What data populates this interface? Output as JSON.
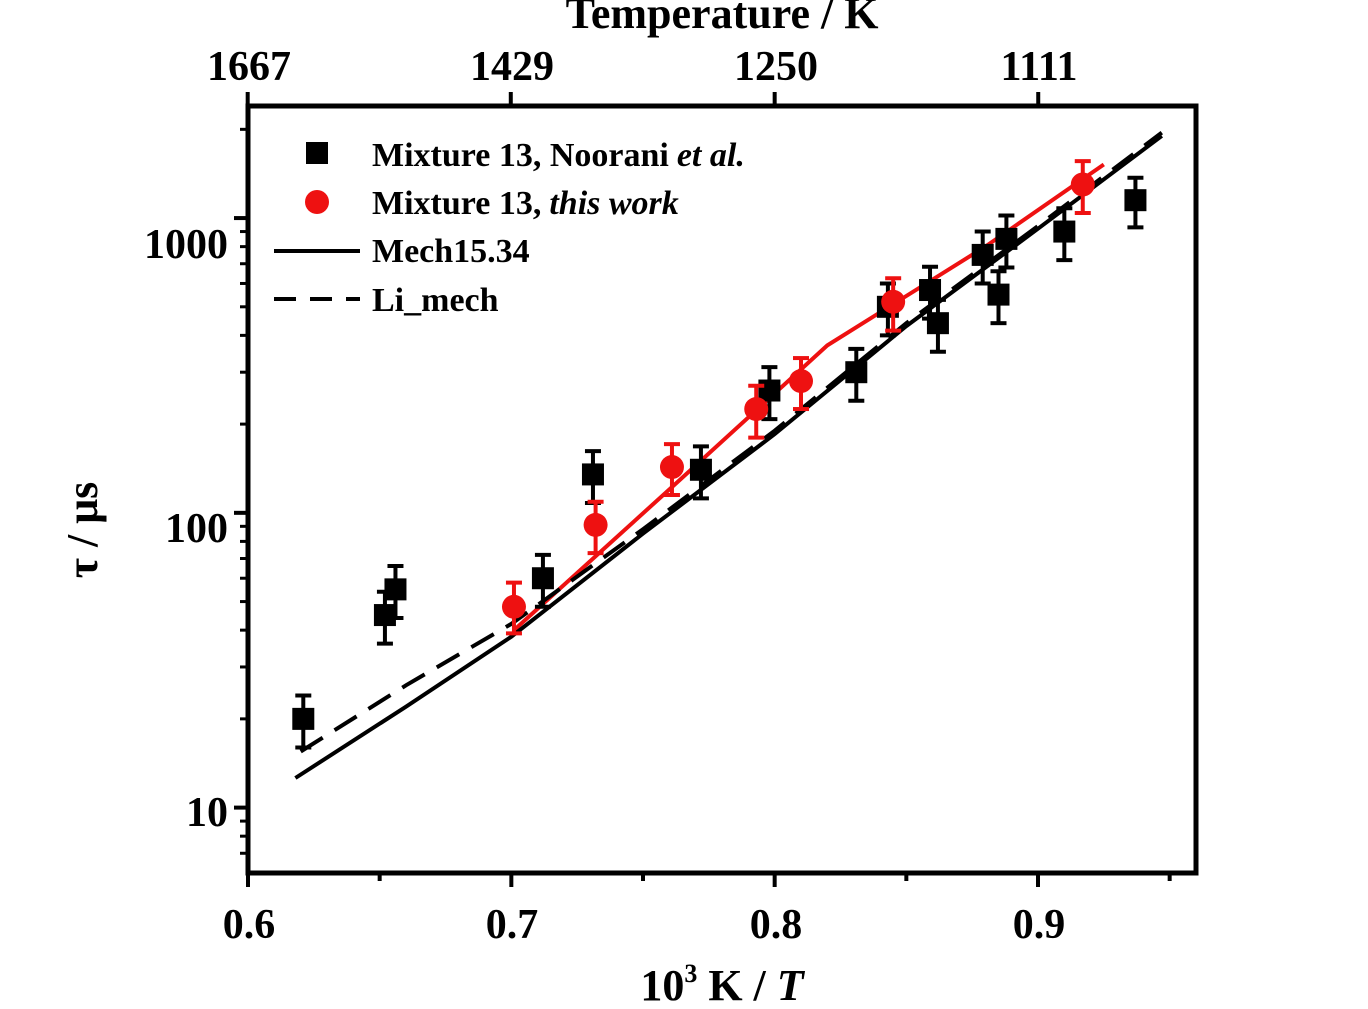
{
  "chart_data": {
    "type": "scatter",
    "top_axis": {
      "title": "Temperature / K",
      "tick_labels": [
        "1667",
        "1429",
        "1250",
        "1111"
      ]
    },
    "xlabel": {
      "prefix": "10",
      "sup": "3",
      "mid": " K / ",
      "var": "T"
    },
    "ylabel": "τ / μs",
    "y_scale": "log",
    "xlim": [
      0.6,
      0.96
    ],
    "ylim": [
      6,
      2400
    ],
    "x_ticks": [
      "0.6",
      "0.7",
      "0.8",
      "0.9"
    ],
    "y_ticks": [
      "10",
      "100",
      "1000"
    ],
    "legend_position": "top-left",
    "series": [
      {
        "name": "Mixture 13, Noorani",
        "name_italic_suffix": "et al.",
        "kind": "points",
        "marker": "square",
        "color": "#000000",
        "points": [
          {
            "x": 0.621,
            "y": 20,
            "err_lo": 4,
            "err_hi": 4
          },
          {
            "x": 0.652,
            "y": 45,
            "err_lo": 9,
            "err_hi": 9
          },
          {
            "x": 0.656,
            "y": 55,
            "err_lo": 11,
            "err_hi": 11
          },
          {
            "x": 0.712,
            "y": 60,
            "err_lo": 12,
            "err_hi": 12
          },
          {
            "x": 0.731,
            "y": 135,
            "err_lo": 27,
            "err_hi": 27
          },
          {
            "x": 0.772,
            "y": 140,
            "err_lo": 28,
            "err_hi": 28
          },
          {
            "x": 0.798,
            "y": 260,
            "err_lo": 52,
            "err_hi": 52
          },
          {
            "x": 0.831,
            "y": 300,
            "err_lo": 60,
            "err_hi": 60
          },
          {
            "x": 0.843,
            "y": 500,
            "err_lo": 100,
            "err_hi": 100
          },
          {
            "x": 0.859,
            "y": 570,
            "err_lo": 114,
            "err_hi": 114
          },
          {
            "x": 0.862,
            "y": 440,
            "err_lo": 88,
            "err_hi": 88
          },
          {
            "x": 0.879,
            "y": 750,
            "err_lo": 150,
            "err_hi": 150
          },
          {
            "x": 0.885,
            "y": 550,
            "err_lo": 110,
            "err_hi": 110
          },
          {
            "x": 0.888,
            "y": 850,
            "err_lo": 170,
            "err_hi": 170
          },
          {
            "x": 0.91,
            "y": 900,
            "err_lo": 180,
            "err_hi": 180
          },
          {
            "x": 0.937,
            "y": 1150,
            "err_lo": 220,
            "err_hi": 220
          }
        ]
      },
      {
        "name": "Mixture 13,",
        "name_italic_suffix": "this work",
        "kind": "points",
        "marker": "circle",
        "color": "#ee1111",
        "points": [
          {
            "x": 0.701,
            "y": 48,
            "err_lo": 9,
            "err_hi": 10
          },
          {
            "x": 0.732,
            "y": 91,
            "err_lo": 18,
            "err_hi": 18
          },
          {
            "x": 0.761,
            "y": 143,
            "err_lo": 28,
            "err_hi": 28
          },
          {
            "x": 0.793,
            "y": 225,
            "err_lo": 45,
            "err_hi": 45
          },
          {
            "x": 0.81,
            "y": 280,
            "err_lo": 55,
            "err_hi": 55
          },
          {
            "x": 0.845,
            "y": 520,
            "err_lo": 105,
            "err_hi": 105
          },
          {
            "x": 0.917,
            "y": 1300,
            "err_lo": 260,
            "err_hi": 260
          }
        ]
      },
      {
        "name": "",
        "kind": "line",
        "style": "solid",
        "color": "#ee1111",
        "points": [
          {
            "x": 0.701,
            "y": 40
          },
          {
            "x": 0.76,
            "y": 120
          },
          {
            "x": 0.82,
            "y": 370
          },
          {
            "x": 0.88,
            "y": 800
          },
          {
            "x": 0.925,
            "y": 1520
          }
        ]
      },
      {
        "name": "Mech15.34",
        "kind": "line",
        "style": "solid",
        "color": "#000000",
        "points": [
          {
            "x": 0.618,
            "y": 12.6
          },
          {
            "x": 0.66,
            "y": 22
          },
          {
            "x": 0.7,
            "y": 38
          },
          {
            "x": 0.75,
            "y": 85
          },
          {
            "x": 0.8,
            "y": 185
          },
          {
            "x": 0.85,
            "y": 430
          },
          {
            "x": 0.9,
            "y": 920
          },
          {
            "x": 0.947,
            "y": 1900
          }
        ]
      },
      {
        "name": "Li_mech",
        "kind": "line",
        "style": "dashed",
        "color": "#000000",
        "points": [
          {
            "x": 0.62,
            "y": 15.5
          },
          {
            "x": 0.66,
            "y": 26
          },
          {
            "x": 0.7,
            "y": 42
          },
          {
            "x": 0.75,
            "y": 88
          },
          {
            "x": 0.8,
            "y": 190
          },
          {
            "x": 0.85,
            "y": 440
          },
          {
            "x": 0.9,
            "y": 940
          },
          {
            "x": 0.947,
            "y": 1950
          }
        ]
      }
    ]
  }
}
